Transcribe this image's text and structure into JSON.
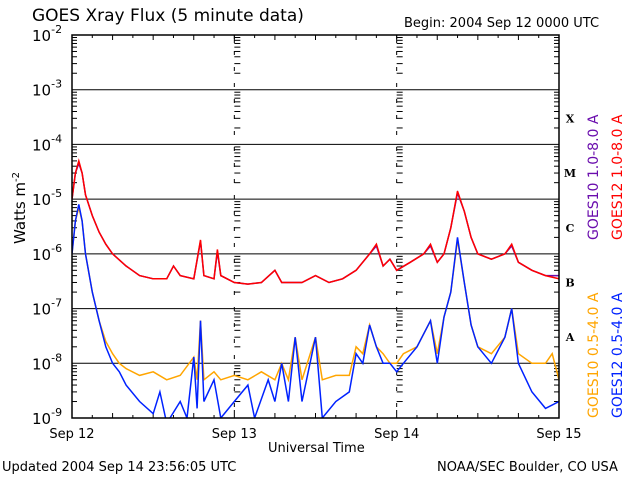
{
  "header": {
    "title": "GOES Xray Flux (5 minute data)",
    "begin": "Begin:  2004 Sep 12 0000 UTC"
  },
  "footer": {
    "updated": "Updated 2004 Sep 14 23:56:05 UTC",
    "credit": "NOAA/SEC Boulder, CO USA"
  },
  "chart_data": {
    "type": "line",
    "title": "GOES Xray Flux (5 minute data)",
    "xlabel": "Universal Time",
    "ylabel": "Watts m⁻²",
    "ylabel_base": "Watts m",
    "ylabel_exp": "-2",
    "xlim_hours": [
      0,
      72
    ],
    "ylim": [
      1e-09,
      0.01
    ],
    "yscale": "log",
    "xticks": [
      {
        "hour": 0,
        "label": "Sep 12"
      },
      {
        "hour": 24,
        "label": "Sep 13"
      },
      {
        "hour": 48,
        "label": "Sep 14"
      },
      {
        "hour": 72,
        "label": "Sep 15"
      }
    ],
    "yticks": [
      {
        "exp": "-2"
      },
      {
        "exp": "-3"
      },
      {
        "exp": "-4"
      },
      {
        "exp": "-5"
      },
      {
        "exp": "-6"
      },
      {
        "exp": "-7"
      },
      {
        "exp": "-8"
      },
      {
        "exp": "-9"
      }
    ],
    "ytick_base": "10",
    "flare_classes": [
      {
        "label": "X",
        "value": 0.0003
      },
      {
        "label": "M",
        "value": 3e-05
      },
      {
        "label": "C",
        "value": 3e-06
      },
      {
        "label": "B",
        "value": 3e-07
      },
      {
        "label": "A",
        "value": 3e-08
      }
    ],
    "series": [
      {
        "name": "GOES10 1.0-8.0 A",
        "color": "#6a0dad",
        "points": [
          [
            0,
            1e-05
          ],
          [
            0.5,
            3e-05
          ],
          [
            1,
            4.5e-05
          ],
          [
            1.5,
            3e-05
          ],
          [
            2,
            1.2e-05
          ],
          [
            3,
            5e-06
          ],
          [
            4,
            2.5e-06
          ],
          [
            5,
            1.5e-06
          ],
          [
            6,
            1e-06
          ],
          [
            8,
            6e-07
          ],
          [
            10,
            4e-07
          ],
          [
            12,
            3.5e-07
          ],
          [
            14,
            3.5e-07
          ],
          [
            15,
            6e-07
          ],
          [
            16,
            4e-07
          ],
          [
            18,
            3.5e-07
          ],
          [
            19,
            1.7e-06
          ],
          [
            19.5,
            4e-07
          ],
          [
            21,
            3.5e-07
          ],
          [
            21.5,
            1.1e-06
          ],
          [
            22,
            4e-07
          ],
          [
            24,
            3e-07
          ],
          [
            26,
            2.8e-07
          ],
          [
            28,
            3e-07
          ],
          [
            30,
            5e-07
          ],
          [
            31,
            3e-07
          ],
          [
            34,
            3e-07
          ],
          [
            36,
            4e-07
          ],
          [
            38,
            3e-07
          ],
          [
            40,
            3.5e-07
          ],
          [
            42,
            5e-07
          ],
          [
            44,
            1e-06
          ],
          [
            45,
            1.4e-06
          ],
          [
            46,
            6e-07
          ],
          [
            47,
            8e-07
          ],
          [
            48,
            5e-07
          ],
          [
            50,
            7e-07
          ],
          [
            52,
            1e-06
          ],
          [
            53,
            1.4e-06
          ],
          [
            54,
            7e-07
          ],
          [
            55,
            1e-06
          ],
          [
            56,
            3e-06
          ],
          [
            57,
            1.3e-05
          ],
          [
            58,
            6e-06
          ],
          [
            59,
            2e-06
          ],
          [
            60,
            1e-06
          ],
          [
            62,
            8e-07
          ],
          [
            64,
            1e-06
          ],
          [
            65,
            1.4e-06
          ],
          [
            66,
            7e-07
          ],
          [
            68,
            5e-07
          ],
          [
            70,
            4e-07
          ],
          [
            72,
            4e-07
          ]
        ]
      },
      {
        "name": "GOES12 1.0-8.0 A",
        "color": "#ff0000",
        "points": [
          [
            0,
            1e-05
          ],
          [
            0.5,
            3e-05
          ],
          [
            1,
            5e-05
          ],
          [
            1.5,
            3e-05
          ],
          [
            2,
            1.2e-05
          ],
          [
            3,
            5e-06
          ],
          [
            4,
            2.5e-06
          ],
          [
            5,
            1.5e-06
          ],
          [
            6,
            1e-06
          ],
          [
            8,
            6e-07
          ],
          [
            10,
            4e-07
          ],
          [
            12,
            3.5e-07
          ],
          [
            14,
            3.5e-07
          ],
          [
            15,
            6e-07
          ],
          [
            16,
            4e-07
          ],
          [
            18,
            3.5e-07
          ],
          [
            19,
            1.8e-06
          ],
          [
            19.5,
            4e-07
          ],
          [
            21,
            3.5e-07
          ],
          [
            21.5,
            1.2e-06
          ],
          [
            22,
            4e-07
          ],
          [
            24,
            3e-07
          ],
          [
            26,
            2.8e-07
          ],
          [
            28,
            3e-07
          ],
          [
            30,
            5e-07
          ],
          [
            31,
            3e-07
          ],
          [
            34,
            3e-07
          ],
          [
            36,
            4e-07
          ],
          [
            38,
            3e-07
          ],
          [
            40,
            3.5e-07
          ],
          [
            42,
            5e-07
          ],
          [
            44,
            1e-06
          ],
          [
            45,
            1.5e-06
          ],
          [
            46,
            6e-07
          ],
          [
            47,
            8e-07
          ],
          [
            48,
            5e-07
          ],
          [
            50,
            7e-07
          ],
          [
            52,
            1e-06
          ],
          [
            53,
            1.5e-06
          ],
          [
            54,
            7e-07
          ],
          [
            55,
            1e-06
          ],
          [
            56,
            3e-06
          ],
          [
            57,
            1.4e-05
          ],
          [
            58,
            6e-06
          ],
          [
            59,
            2e-06
          ],
          [
            60,
            1e-06
          ],
          [
            62,
            8e-07
          ],
          [
            64,
            1e-06
          ],
          [
            65,
            1.5e-06
          ],
          [
            66,
            7e-07
          ],
          [
            68,
            5e-07
          ],
          [
            70,
            4e-07
          ],
          [
            72,
            3.5e-07
          ]
        ]
      },
      {
        "name": "GOES10 0.5-4.0 A",
        "color": "#ffa500",
        "points": [
          [
            0,
            1e-06
          ],
          [
            0.5,
            4e-06
          ],
          [
            1,
            7e-06
          ],
          [
            1.5,
            4e-06
          ],
          [
            2,
            1e-06
          ],
          [
            3,
            2e-07
          ],
          [
            4,
            6e-08
          ],
          [
            5,
            2.5e-08
          ],
          [
            6,
            1.5e-08
          ],
          [
            7,
            1e-08
          ],
          [
            8,
            8e-09
          ],
          [
            10,
            6e-09
          ],
          [
            12,
            7e-09
          ],
          [
            14,
            5e-09
          ],
          [
            16,
            6e-09
          ],
          [
            18,
            1.3e-08
          ],
          [
            18.5,
            5e-09
          ],
          [
            19,
            6e-08
          ],
          [
            19.5,
            5e-09
          ],
          [
            21,
            7e-09
          ],
          [
            22,
            5e-09
          ],
          [
            24,
            6e-09
          ],
          [
            26,
            5e-09
          ],
          [
            28,
            7e-09
          ],
          [
            30,
            5e-09
          ],
          [
            31,
            1e-08
          ],
          [
            32,
            5e-09
          ],
          [
            33,
            3e-08
          ],
          [
            34,
            5e-09
          ],
          [
            36,
            3e-08
          ],
          [
            37,
            5e-09
          ],
          [
            39,
            6e-09
          ],
          [
            41,
            6e-09
          ],
          [
            42,
            2e-08
          ],
          [
            43,
            1.5e-08
          ],
          [
            44,
            5e-08
          ],
          [
            45,
            2e-08
          ],
          [
            46,
            1.5e-08
          ],
          [
            47,
            1e-08
          ],
          [
            48,
            1e-08
          ],
          [
            49,
            1.5e-08
          ],
          [
            51,
            2e-08
          ],
          [
            53,
            6e-08
          ],
          [
            54,
            1.5e-08
          ],
          [
            55,
            7e-08
          ],
          [
            56,
            2e-07
          ],
          [
            57,
            1.8e-06
          ],
          [
            58,
            3e-07
          ],
          [
            59,
            5e-08
          ],
          [
            60,
            2e-08
          ],
          [
            62,
            1.5e-08
          ],
          [
            64,
            3e-08
          ],
          [
            65,
            1e-07
          ],
          [
            66,
            1.5e-08
          ],
          [
            68,
            1e-08
          ],
          [
            70,
            1e-08
          ],
          [
            71,
            1.5e-08
          ],
          [
            72,
            5e-09
          ]
        ]
      },
      {
        "name": "GOES12 0.5-4.0 A",
        "color": "#0022ff",
        "points": [
          [
            0,
            1e-06
          ],
          [
            0.5,
            4e-06
          ],
          [
            1,
            8e-06
          ],
          [
            1.5,
            4e-06
          ],
          [
            2,
            1e-06
          ],
          [
            3,
            2e-07
          ],
          [
            4,
            6e-08
          ],
          [
            5,
            2e-08
          ],
          [
            6,
            1e-08
          ],
          [
            7,
            7e-09
          ],
          [
            8,
            4e-09
          ],
          [
            10,
            2e-09
          ],
          [
            12,
            1.2e-09
          ],
          [
            13,
            3e-09
          ],
          [
            14,
            8e-10
          ],
          [
            16,
            2e-09
          ],
          [
            17,
            1e-09
          ],
          [
            18,
            1.3e-08
          ],
          [
            18.5,
            1.5e-09
          ],
          [
            19,
            6e-08
          ],
          [
            19.5,
            2e-09
          ],
          [
            21,
            5e-09
          ],
          [
            22,
            1e-09
          ],
          [
            24,
            2e-09
          ],
          [
            26,
            4e-09
          ],
          [
            27,
            1e-09
          ],
          [
            29,
            5e-09
          ],
          [
            30,
            2e-09
          ],
          [
            31,
            1e-08
          ],
          [
            32,
            2e-09
          ],
          [
            33,
            3e-08
          ],
          [
            34,
            2e-09
          ],
          [
            36,
            3e-08
          ],
          [
            37,
            1e-09
          ],
          [
            39,
            2e-09
          ],
          [
            41,
            3e-09
          ],
          [
            42,
            1.5e-08
          ],
          [
            43,
            1e-08
          ],
          [
            44,
            5e-08
          ],
          [
            45,
            2e-08
          ],
          [
            46,
            1e-08
          ],
          [
            47,
            1e-08
          ],
          [
            48,
            7e-09
          ],
          [
            49,
            1e-08
          ],
          [
            51,
            2e-08
          ],
          [
            53,
            6e-08
          ],
          [
            54,
            1e-08
          ],
          [
            55,
            7e-08
          ],
          [
            56,
            2e-07
          ],
          [
            57,
            2e-06
          ],
          [
            58,
            3e-07
          ],
          [
            59,
            5e-08
          ],
          [
            60,
            2e-08
          ],
          [
            62,
            1e-08
          ],
          [
            64,
            3e-08
          ],
          [
            65,
            1e-07
          ],
          [
            66,
            1e-08
          ],
          [
            68,
            3e-09
          ],
          [
            70,
            1.5e-09
          ],
          [
            72,
            2e-09
          ]
        ]
      }
    ]
  }
}
